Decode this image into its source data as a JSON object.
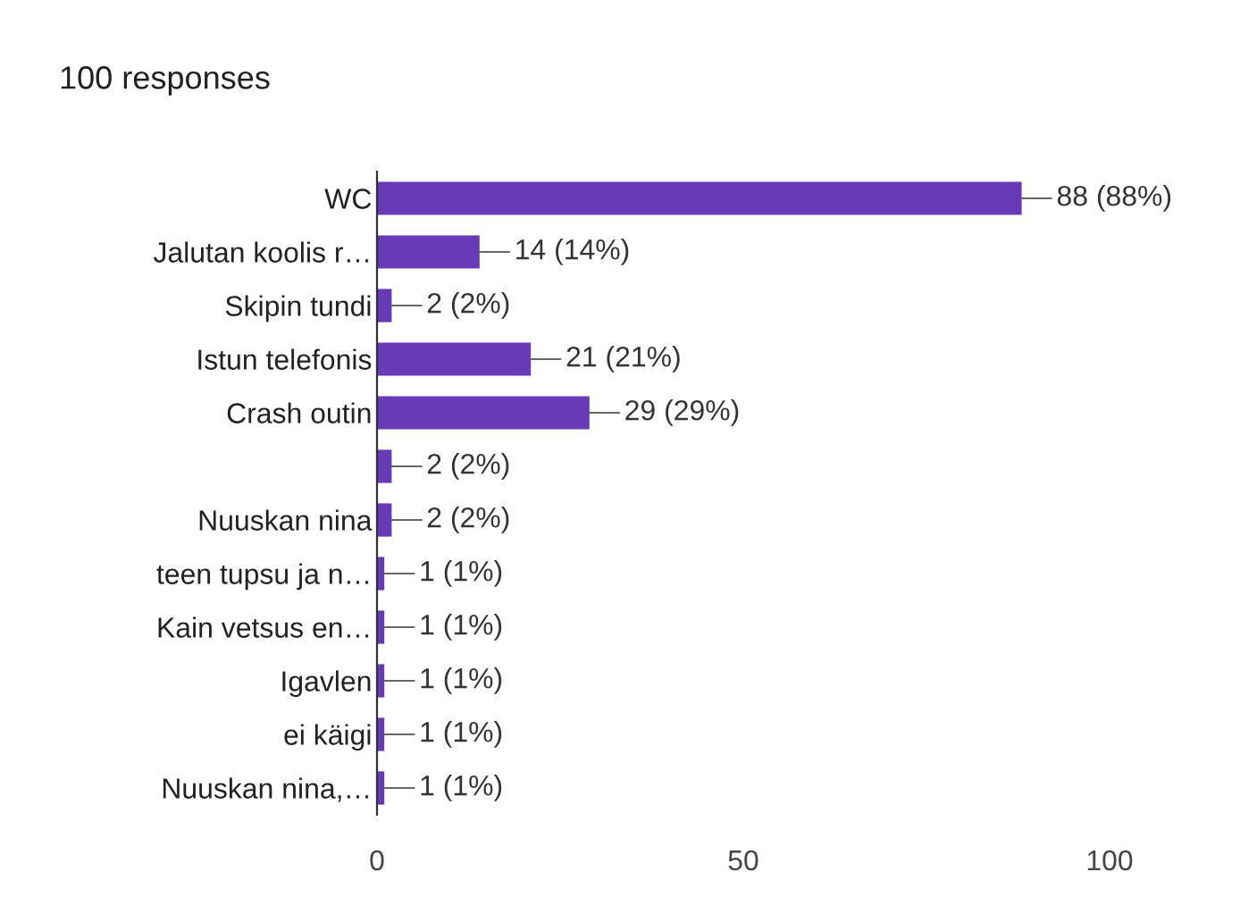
{
  "chart_data": {
    "type": "bar",
    "orientation": "horizontal",
    "title": "100 responses",
    "categories": [
      "WC",
      "Jalutan koolis r…",
      "Skipin tundi",
      "Istun telefonis",
      "Crash outin",
      null,
      "Nuuskan nina",
      "teen tupsu ja n…",
      "Kain vetsus en…",
      "Igavlen",
      "ei käigi",
      "Nuuskan nina,…"
    ],
    "values": [
      88,
      14,
      2,
      21,
      29,
      2,
      2,
      1,
      1,
      1,
      1,
      1
    ],
    "value_labels": [
      "88 (88%)",
      "14 (14%)",
      "2 (2%)",
      "21 (21%)",
      "29 (29%)",
      "2 (2%)",
      "2 (2%)",
      "1 (1%)",
      "1 (1%)",
      "1 (1%)",
      "1 (1%)",
      "1 (1%)"
    ],
    "color": "#673ab7",
    "xlim": [
      0,
      100
    ],
    "xticks": [
      0,
      50,
      100
    ],
    "legend": false
  }
}
